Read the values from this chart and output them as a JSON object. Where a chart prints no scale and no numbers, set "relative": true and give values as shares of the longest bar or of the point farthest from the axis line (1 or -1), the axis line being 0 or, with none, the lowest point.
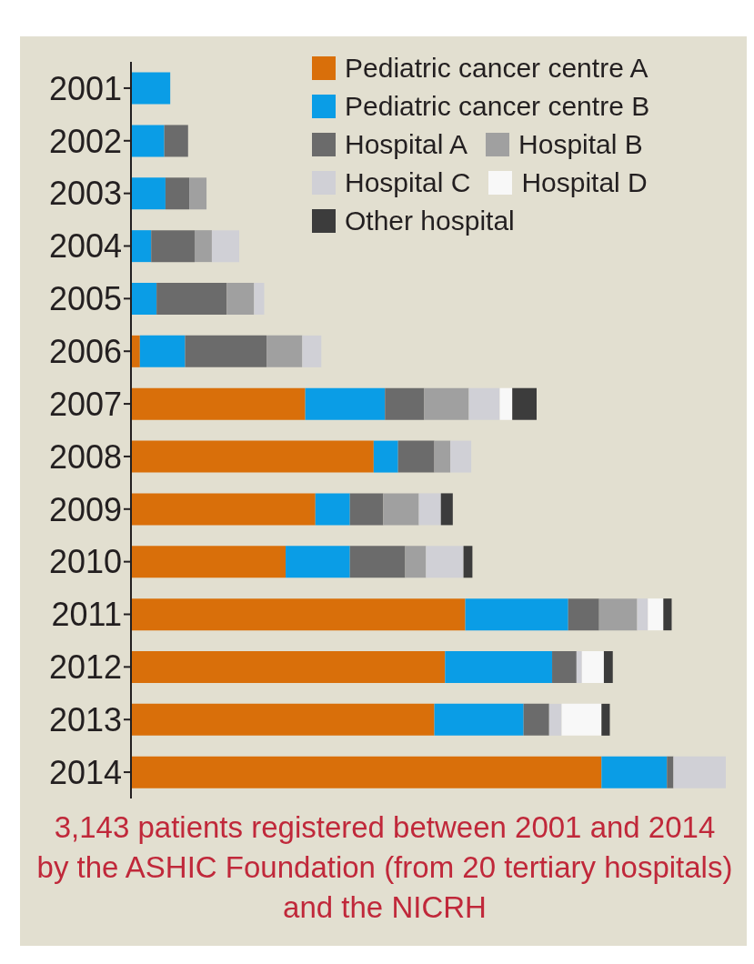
{
  "chart_data": {
    "type": "bar",
    "orientation": "horizontal",
    "stacked": true,
    "relative": true,
    "legend": "top right",
    "categories": [
      "2001",
      "2002",
      "2003",
      "2004",
      "2005",
      "2006",
      "2007",
      "2008",
      "2009",
      "2010",
      "2011",
      "2012",
      "2013",
      "2014"
    ],
    "series": [
      {
        "name": "Pediatric cancer centre A",
        "color": "#d96f0a",
        "values": [
          0,
          0,
          0,
          0,
          0,
          0.015,
          0.293,
          0.408,
          0.31,
          0.26,
          0.562,
          0.528,
          0.51,
          0.791
        ]
      },
      {
        "name": "Pediatric cancer centre B",
        "color": "#0a9de6",
        "values": [
          0.066,
          0.056,
          0.058,
          0.034,
          0.043,
          0.076,
          0.134,
          0.041,
          0.058,
          0.108,
          0.173,
          0.18,
          0.15,
          0.11
        ]
      },
      {
        "name": "Hospital A",
        "color": "#6b6b6b",
        "values": [
          0,
          0.04,
          0.04,
          0.073,
          0.118,
          0.137,
          0.066,
          0.061,
          0.056,
          0.093,
          0.052,
          0.041,
          0.043,
          0.011
        ]
      },
      {
        "name": "Hospital B",
        "color": "#a0a0a0",
        "values": [
          0,
          0,
          0.029,
          0.029,
          0.046,
          0.06,
          0.075,
          0.027,
          0.06,
          0.035,
          0.064,
          0,
          0,
          0
        ]
      },
      {
        "name": "Hospital C",
        "color": "#d0d0d6",
        "values": [
          0,
          0,
          0,
          0.046,
          0.017,
          0.032,
          0.052,
          0.035,
          0.037,
          0.063,
          0.018,
          0.009,
          0.021,
          0.088
        ]
      },
      {
        "name": "Hospital D",
        "color": "#f8f8f8",
        "values": [
          0,
          0,
          0,
          0,
          0,
          0,
          0.021,
          0,
          0,
          0,
          0.026,
          0.037,
          0.067,
          0
        ]
      },
      {
        "name": "Other hospital",
        "color": "#3c3c3c",
        "values": [
          0,
          0,
          0,
          0,
          0,
          0,
          0.041,
          0,
          0.02,
          0.015,
          0.014,
          0.015,
          0.014,
          0
        ]
      }
    ],
    "annotations": [
      "3,143 patients registered between 2001 and 2014 by the ASHIC Foundation (from 20 tertiary hospitals) and the NICRH"
    ]
  }
}
